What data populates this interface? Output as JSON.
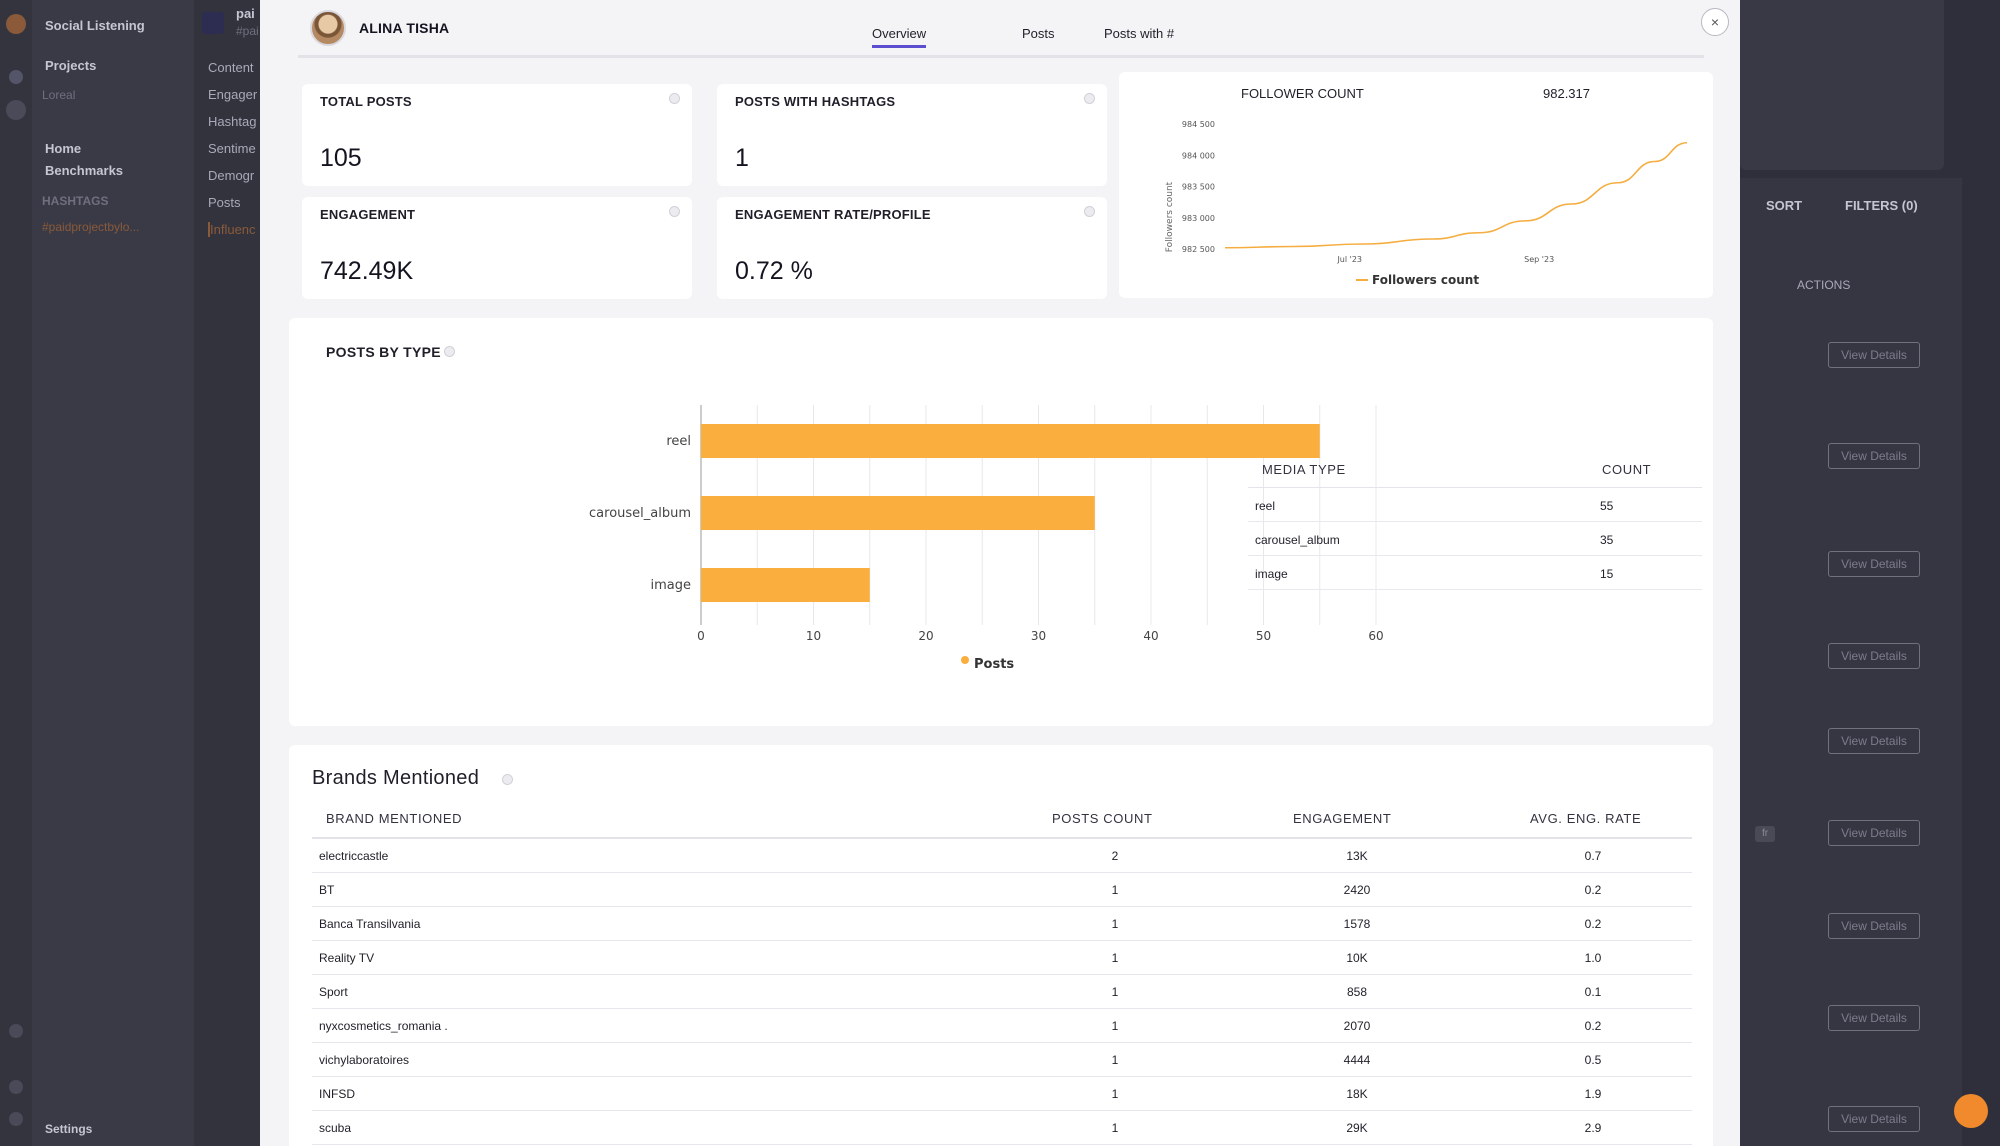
{
  "background": {
    "app_title": "Social Listening",
    "nav": {
      "projects": "Projects",
      "project_select": "Loreal",
      "home": "Home",
      "benchmarks": "Benchmarks",
      "hashtags_header": "HASHTAGS",
      "hashtag_item": "#paidprojectbylo...",
      "settings": "Settings"
    },
    "sub_nav": {
      "header": "pai",
      "header_sub": "#pai",
      "items": [
        "Content",
        "Engager",
        "Hashtag",
        "Sentime",
        "Demogr",
        "Posts",
        "Influenc"
      ]
    },
    "toolbar": {
      "sort": "SORT",
      "filters": "FILTERS (0)",
      "actions": "ACTIONS"
    },
    "view_details": "View Details",
    "chip_label": "fr"
  },
  "modal": {
    "profile_name": "ALINA TISHA",
    "tabs": [
      "Overview",
      "Posts",
      "Posts with #"
    ],
    "close": "×",
    "kpis": {
      "total_posts": {
        "label": "TOTAL POSTS",
        "value": "105"
      },
      "posts_with_hashtags": {
        "label": "POSTS WITH HASHTAGS",
        "value": "1"
      },
      "engagement": {
        "label": "ENGAGEMENT",
        "value": "742.49K"
      },
      "engagement_rate": {
        "label": "ENGAGEMENT RATE/PROFILE",
        "value": "0.72 %"
      }
    },
    "follower": {
      "label": "FOLLOWER COUNT",
      "value": "982.317"
    },
    "posts_by_type": {
      "title": "POSTS BY TYPE",
      "table_headers": [
        "MEDIA TYPE",
        "COUNT"
      ],
      "rows": [
        {
          "type": "reel",
          "count": "55"
        },
        {
          "type": "carousel_album",
          "count": "35"
        },
        {
          "type": "image",
          "count": "15"
        }
      ]
    },
    "brands": {
      "title": "Brands Mentioned",
      "headers": [
        "BRAND MENTIONED",
        "POSTS COUNT",
        "ENGAGEMENT",
        "AVG. ENG. RATE"
      ],
      "rows": [
        {
          "brand": "electriccastle",
          "posts": "2",
          "engagement": "13K",
          "rate": "0.7"
        },
        {
          "brand": "BT",
          "posts": "1",
          "engagement": "2420",
          "rate": "0.2"
        },
        {
          "brand": "Banca Transilvania",
          "posts": "1",
          "engagement": "1578",
          "rate": "0.2"
        },
        {
          "brand": "Reality TV",
          "posts": "1",
          "engagement": "10K",
          "rate": "1.0"
        },
        {
          "brand": "Sport",
          "posts": "1",
          "engagement": "858",
          "rate": "0.1"
        },
        {
          "brand": "nyxcosmetics_romania .",
          "posts": "1",
          "engagement": "2070",
          "rate": "0.2"
        },
        {
          "brand": "vichylaboratoires",
          "posts": "1",
          "engagement": "4444",
          "rate": "0.5"
        },
        {
          "brand": "INFSD",
          "posts": "1",
          "engagement": "18K",
          "rate": "1.9"
        },
        {
          "brand": "scuba",
          "posts": "1",
          "engagement": "29K",
          "rate": "2.9"
        }
      ]
    }
  },
  "chart_data": [
    {
      "type": "line",
      "ylabel": "Followers count",
      "yticks": [
        "982 500",
        "983 000",
        "983 500",
        "984 000",
        "984 500"
      ],
      "ylim": [
        982500,
        984500
      ],
      "x_tick_labels": [
        "Jul '23",
        "Sep '23"
      ],
      "series": [
        {
          "name": "Followers count",
          "points": [
            [
              0,
              982520
            ],
            [
              0.15,
              982540
            ],
            [
              0.3,
              982580
            ],
            [
              0.45,
              982660
            ],
            [
              0.55,
              982760
            ],
            [
              0.65,
              982950
            ],
            [
              0.75,
              983220
            ],
            [
              0.85,
              983560
            ],
            [
              0.93,
              983900
            ],
            [
              1.0,
              984200
            ]
          ]
        }
      ],
      "color": "#f5ad3f",
      "legend": "bottom"
    },
    {
      "type": "bar",
      "orientation": "horizontal",
      "categories": [
        "reel",
        "carousel_album",
        "image"
      ],
      "values": [
        55,
        35,
        15
      ],
      "xticks": [
        0,
        10,
        20,
        30,
        40,
        50,
        60
      ],
      "xlim": [
        0,
        60
      ],
      "series_name": "Posts",
      "color": "#f9ae3d",
      "legend": "bottom",
      "grid": true
    }
  ]
}
